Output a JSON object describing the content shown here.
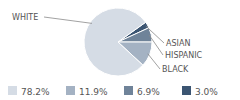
{
  "chart_data": {
    "type": "pie",
    "categories": [
      "WHITE",
      "BLACK",
      "HISPANIC",
      "ASIAN"
    ],
    "values": [
      78.2,
      11.9,
      6.9,
      3.0
    ],
    "value_labels": [
      "78.2%",
      "11.9%",
      "6.9%",
      "3.0%"
    ],
    "colors": [
      "#d5dce5",
      "#a4b2c3",
      "#6f8399",
      "#3b5572"
    ],
    "legend": "bottom"
  }
}
